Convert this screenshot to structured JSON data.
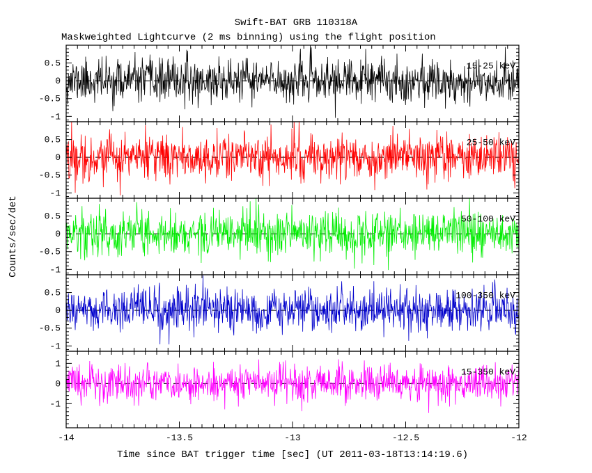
{
  "chart_data": {
    "type": "line",
    "title": "Swift-BAT GRB 110318A",
    "subtitle": "Maskweighted Lightcurve (2 ms binning) using the flight position",
    "xlabel": "Time since BAT trigger time [sec] (UT 2011-03-18T13:14:19.6)",
    "ylabel": "Counts/sec/det",
    "xlim": [
      -14,
      -12
    ],
    "x_ticks": [
      -14,
      -13.5,
      -13,
      -12.5,
      -12
    ],
    "x_tick_labels": [
      "-14",
      "-13.5",
      "-13",
      "-12.5",
      "-12"
    ],
    "x_minor_step": 0.05,
    "bin_seconds": 0.002,
    "n_points": 1000,
    "grid": "off",
    "zero_line": {
      "style": "dashed",
      "value": 0,
      "color": "#000000"
    },
    "panels": [
      {
        "name": "15-25 keV",
        "color": "#000000",
        "ylim": [
          -1.15,
          1.0
        ],
        "y_ticks": [
          0.5,
          0,
          -0.5,
          -1
        ],
        "y_tick_labels": [
          "0.5",
          "0",
          "-0.5",
          "-1"
        ],
        "y_minor_step": 0.1,
        "noise_std": 0.3,
        "seed": 11
      },
      {
        "name": "25-50 keV",
        "color": "#ff0000",
        "ylim": [
          -1.15,
          1.0
        ],
        "y_ticks": [
          0.5,
          0,
          -0.5,
          -1
        ],
        "y_tick_labels": [
          "0.5",
          "0",
          "-0.5",
          "-1"
        ],
        "y_minor_step": 0.1,
        "noise_std": 0.32,
        "seed": 22
      },
      {
        "name": "50-100 keV",
        "color": "#00ee00",
        "ylim": [
          -1.15,
          1.0
        ],
        "y_ticks": [
          0.5,
          0,
          -0.5,
          -1
        ],
        "y_tick_labels": [
          "0.5",
          "0",
          "-0.5",
          "-1"
        ],
        "y_minor_step": 0.1,
        "noise_std": 0.32,
        "seed": 33
      },
      {
        "name": "100-350 keV",
        "color": "#0000cc",
        "ylim": [
          -1.15,
          1.0
        ],
        "y_ticks": [
          0.5,
          0,
          -0.5,
          -1
        ],
        "y_tick_labels": [
          "0.5",
          "0",
          "-0.5",
          "-1"
        ],
        "y_minor_step": 0.1,
        "noise_std": 0.3,
        "seed": 44
      },
      {
        "name": "15-350 keV",
        "color": "#ff00ff",
        "ylim": [
          -2.2,
          1.6
        ],
        "y_ticks": [
          1,
          0,
          -1
        ],
        "y_tick_labels": [
          "1",
          "0",
          "-1"
        ],
        "y_minor_step": 0.2,
        "noise_std": 0.46,
        "seed": 55
      }
    ]
  }
}
